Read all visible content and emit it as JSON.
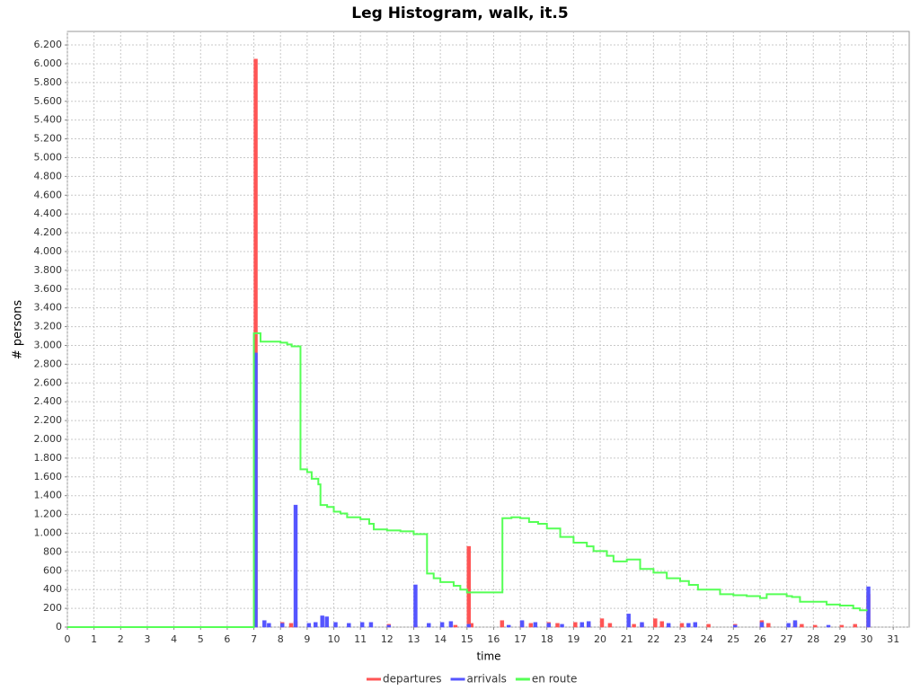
{
  "chart_data": {
    "type": "histogram-line",
    "title": "Leg Histogram, walk, it.5",
    "x_label": "time",
    "y_label": "# persons",
    "xlim": [
      0,
      31.6
    ],
    "ylim": [
      0,
      6344
    ],
    "xticks": [
      0,
      1,
      2,
      3,
      4,
      5,
      6,
      7,
      8,
      9,
      10,
      11,
      12,
      13,
      14,
      15,
      16,
      17,
      18,
      19,
      20,
      21,
      22,
      23,
      24,
      25,
      26,
      27,
      28,
      29,
      30,
      31
    ],
    "yticks": [
      0,
      200,
      400,
      600,
      800,
      {
        "value": 1000,
        "label": "1.000"
      },
      {
        "value": 1200,
        "label": "1.200"
      },
      {
        "value": 1400,
        "label": "1.400"
      },
      {
        "value": 1600,
        "label": "1.600"
      },
      {
        "value": 1800,
        "label": "1.800"
      },
      {
        "value": 2000,
        "label": "2.000"
      },
      {
        "value": 2200,
        "label": "2.200"
      },
      {
        "value": 2400,
        "label": "2.400"
      },
      {
        "value": 2600,
        "label": "2.600"
      },
      {
        "value": 2800,
        "label": "2.800"
      },
      {
        "value": 3000,
        "label": "3.000"
      },
      {
        "value": 3200,
        "label": "3.200"
      },
      {
        "value": 3400,
        "label": "3.400"
      },
      {
        "value": 3600,
        "label": "3.600"
      },
      {
        "value": 3800,
        "label": "3.800"
      },
      {
        "value": 4000,
        "label": "4.000"
      },
      {
        "value": 4200,
        "label": "4.200"
      },
      {
        "value": 4400,
        "label": "4.400"
      },
      {
        "value": 4600,
        "label": "4.600"
      },
      {
        "value": 4800,
        "label": "4.800"
      },
      {
        "value": 5000,
        "label": "5.000"
      },
      {
        "value": 5200,
        "label": "5.200"
      },
      {
        "value": 5400,
        "label": "5.400"
      },
      {
        "value": 5600,
        "label": "5.600"
      },
      {
        "value": 5800,
        "label": "5.800"
      },
      {
        "value": 6000,
        "label": "6.000"
      },
      {
        "value": 6200,
        "label": "6.200"
      }
    ],
    "grid": true,
    "series": [
      {
        "name": "departures",
        "color": "#ff5555",
        "kind": "bar",
        "x": [
          7,
          8,
          8.33,
          8.5,
          12,
          13,
          14.5,
          15,
          15.1,
          16.25,
          17,
          17.33,
          18,
          18.33,
          19,
          19.5,
          20,
          20.3,
          21.2,
          21.5,
          22,
          22.25,
          23,
          24,
          25,
          26,
          26.25,
          27.25,
          27.5,
          28,
          29,
          29.5,
          30
        ],
        "values": [
          6050,
          50,
          40,
          60,
          30,
          20,
          20,
          860,
          40,
          70,
          60,
          40,
          50,
          40,
          50,
          40,
          90,
          40,
          30,
          30,
          90,
          60,
          40,
          30,
          30,
          70,
          40,
          50,
          30,
          20,
          20,
          30,
          350
        ]
      },
      {
        "name": "arrivals",
        "color": "#5555ff",
        "kind": "bar",
        "x": [
          7,
          7.33,
          7.5,
          8,
          8.5,
          9,
          9.25,
          9.5,
          9.67,
          10,
          10.5,
          11,
          11.33,
          12,
          13,
          13.5,
          14,
          14.33,
          15,
          16.5,
          17,
          17.5,
          18,
          18.5,
          19.25,
          19.5,
          21,
          21.5,
          22.5,
          23.25,
          23.5,
          25,
          26,
          27,
          27.25,
          28.5,
          30
        ],
        "values": [
          2920,
          70,
          40,
          40,
          1300,
          40,
          50,
          120,
          110,
          50,
          40,
          50,
          50,
          20,
          450,
          40,
          50,
          60,
          30,
          20,
          70,
          50,
          40,
          30,
          50,
          60,
          140,
          50,
          40,
          40,
          50,
          20,
          50,
          40,
          70,
          20,
          430
        ]
      },
      {
        "name": "en route",
        "color": "#55ff55",
        "kind": "step",
        "x": [
          0,
          7,
          7.25,
          8,
          8.25,
          8.42,
          8.75,
          9,
          9.17,
          9.42,
          9.5,
          9.75,
          10,
          10.25,
          10.5,
          11,
          11.33,
          11.5,
          12,
          12.5,
          13,
          13.5,
          13.75,
          14,
          14.5,
          14.75,
          15,
          16.33,
          16.67,
          17,
          17.33,
          17.67,
          18,
          18.5,
          19,
          19.5,
          19.75,
          20.25,
          20.5,
          21,
          21.5,
          22,
          22.5,
          23,
          23.33,
          23.67,
          24.5,
          25,
          25.5,
          26,
          26.25,
          27,
          27.2,
          27.5,
          28.5,
          29,
          29.5,
          29.75,
          30
        ],
        "values": [
          0,
          3130,
          3040,
          3030,
          3010,
          2990,
          1680,
          1650,
          1580,
          1520,
          1300,
          1280,
          1230,
          1210,
          1170,
          1150,
          1100,
          1040,
          1030,
          1020,
          990,
          570,
          520,
          480,
          440,
          400,
          370,
          1160,
          1170,
          1160,
          1120,
          1100,
          1050,
          960,
          900,
          860,
          810,
          760,
          700,
          720,
          620,
          580,
          520,
          490,
          450,
          400,
          350,
          340,
          330,
          310,
          350,
          330,
          320,
          270,
          240,
          230,
          200,
          180,
          170
        ]
      }
    ]
  }
}
